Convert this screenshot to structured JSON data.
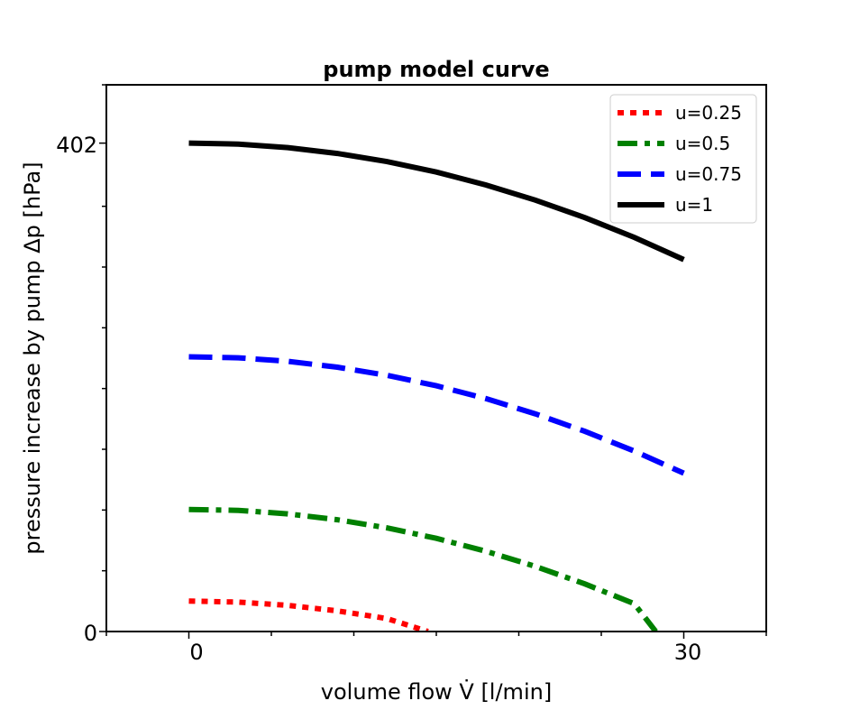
{
  "chart_data": {
    "type": "line",
    "title": "pump model curve",
    "xlabel": "volume flow V̇ [l/min]",
    "ylabel": "pressure increase by pump Δp [hPa]",
    "xlim": [
      -5,
      35
    ],
    "ylim": [
      0,
      450
    ],
    "x_ticks_labeled": [
      0,
      30
    ],
    "y_ticks_labeled": [
      0,
      402
    ],
    "x_tick_labels": [
      "0",
      "30"
    ],
    "y_tick_labels": [
      "0",
      "402"
    ],
    "grid": false,
    "legend_position": "top-right",
    "series": [
      {
        "name": "u=0.25",
        "color": "#ff0000",
        "style": "dotted",
        "x": [
          0,
          3,
          6,
          9,
          12,
          14.5
        ],
        "y": [
          25.1,
          24.2,
          21.5,
          17.0,
          10.7,
          0
        ]
      },
      {
        "name": "u=0.5",
        "color": "#008000",
        "style": "dashdot",
        "x": [
          0,
          3,
          6,
          9,
          12,
          15,
          18,
          21,
          24,
          27,
          28.3
        ],
        "y": [
          100.5,
          99.7,
          96.8,
          92.0,
          85.3,
          76.7,
          66.1,
          53.6,
          39.2,
          22.9,
          0
        ]
      },
      {
        "name": "u=0.75",
        "color": "#0000ff",
        "style": "dashed",
        "x": [
          0,
          3,
          6,
          9,
          12,
          15,
          18,
          21,
          24,
          27,
          30
        ],
        "y": [
          226.1,
          225.3,
          222.4,
          217.6,
          210.9,
          202.3,
          191.7,
          179.2,
          164.8,
          148.5,
          130.3
        ]
      },
      {
        "name": "u=1",
        "color": "#000000",
        "style": "solid",
        "x": [
          0,
          3,
          6,
          9,
          12,
          15,
          18,
          21,
          24,
          27,
          30
        ],
        "y": [
          402,
          401.2,
          398.3,
          393.5,
          386.8,
          378.2,
          367.6,
          355.1,
          340.7,
          324.4,
          306.2
        ]
      }
    ]
  }
}
